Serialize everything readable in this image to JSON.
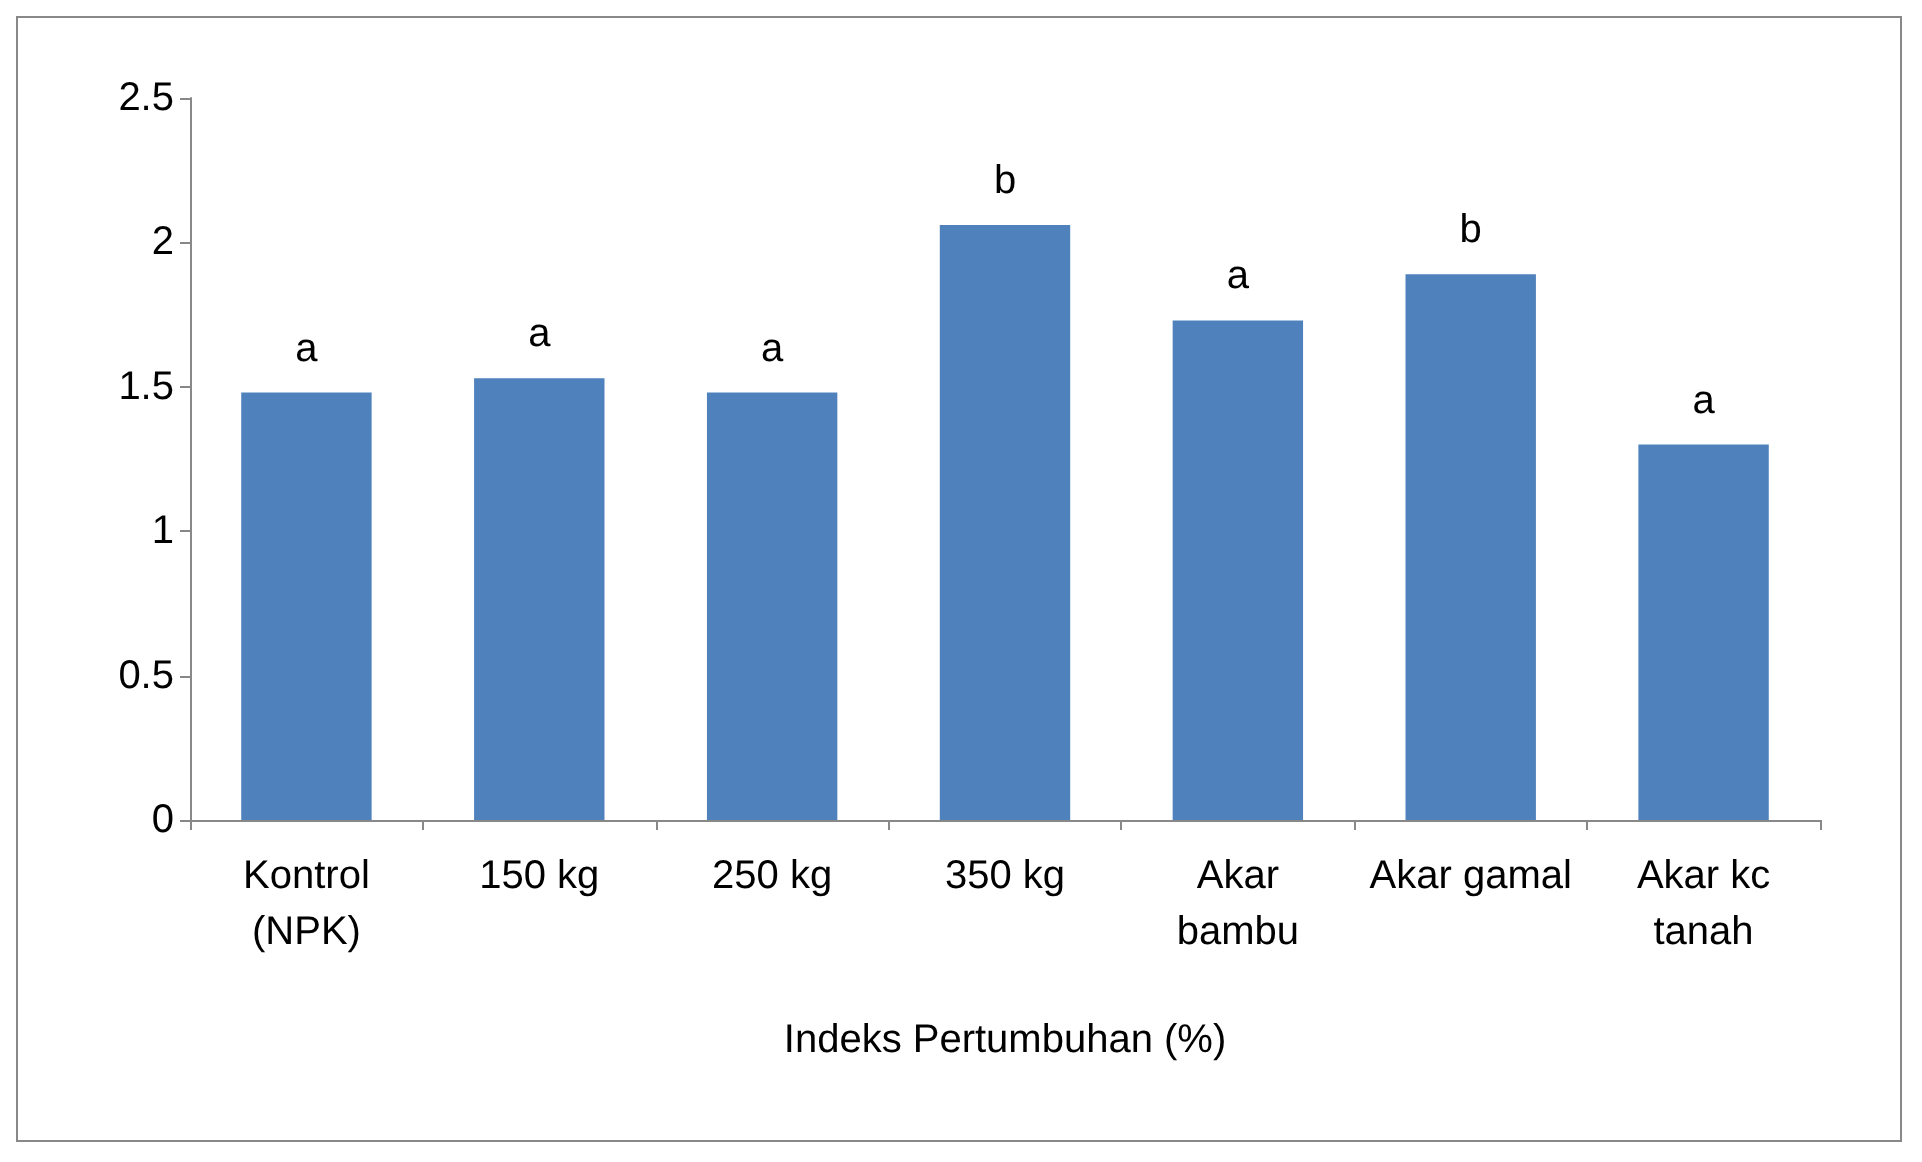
{
  "chart_data": {
    "type": "bar",
    "xlabel": "Indeks Pertumbuhan (%)",
    "categories": [
      "Kontrol\n(NPK)",
      "150 kg",
      "250 kg",
      "350 kg",
      "Akar\nbambu",
      "Akar gamal",
      "Akar kc\ntanah"
    ],
    "series": [
      {
        "color": "#4f81bd",
        "values": [
          1.48,
          1.53,
          1.48,
          2.06,
          1.73,
          1.89,
          1.3
        ]
      }
    ],
    "ylim": [
      0,
      2.5
    ],
    "yticks": [
      0,
      0.5,
      1,
      1.5,
      2,
      2.5
    ],
    "grid": false,
    "annotations": [
      {
        "text": "a",
        "x": "Kontrol\n(NPK)",
        "y": 1.48
      },
      {
        "text": "a",
        "x": "150 kg",
        "y": 1.53
      },
      {
        "text": "a",
        "x": "250 kg",
        "y": 1.48
      },
      {
        "text": "b",
        "x": "350 kg",
        "y": 2.06
      },
      {
        "text": "a",
        "x": "Akar\nbambu",
        "y": 1.73
      },
      {
        "text": "b",
        "x": "Akar gamal",
        "y": 1.89
      },
      {
        "text": "a",
        "x": "Akar kc\ntanah",
        "y": 1.3
      }
    ]
  }
}
